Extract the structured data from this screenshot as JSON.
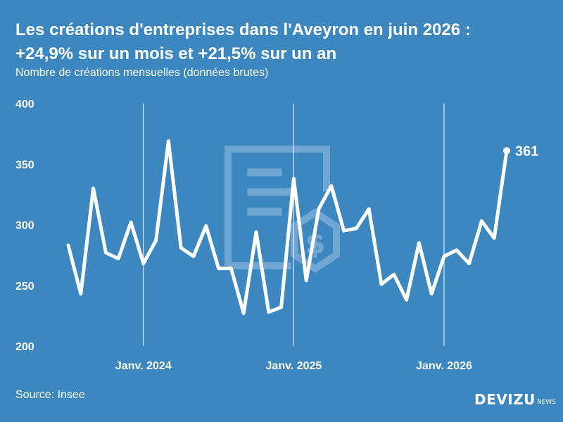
{
  "header": {
    "title_line1": "Les créations d'entreprises dans l'Aveyron en juin 2026 :",
    "title_line2": "+24,9% sur un mois et +21,5% sur un an",
    "subtitle": "Nombre de créations mensuelles (données brutes)"
  },
  "footer": {
    "source": "Source: Insee",
    "brand_main": "DEVIZU",
    "brand_sub": "NEWS"
  },
  "colors": {
    "background": "#3c87c0",
    "line": "#ffffff",
    "watermark": "#6fa6d2"
  },
  "icons": [
    "document-euro-watermark-icon"
  ],
  "chart_data": {
    "type": "line",
    "title": "Les créations d'entreprises dans l'Aveyron en juin 2026 : +24,9% sur un mois et +21,5% sur un an",
    "subtitle": "Nombre de créations mensuelles (données brutes)",
    "xlabel": "",
    "ylabel": "",
    "ylim": [
      200,
      400
    ],
    "yticks": [
      200,
      250,
      300,
      350,
      400
    ],
    "x": [
      "2023-07",
      "2023-08",
      "2023-09",
      "2023-10",
      "2023-11",
      "2023-12",
      "2024-01",
      "2024-02",
      "2024-03",
      "2024-04",
      "2024-05",
      "2024-06",
      "2024-07",
      "2024-08",
      "2024-09",
      "2024-10",
      "2024-11",
      "2024-12",
      "2025-01",
      "2025-02",
      "2025-03",
      "2025-04",
      "2025-05",
      "2025-06",
      "2025-07",
      "2025-08",
      "2025-09",
      "2025-10",
      "2025-11",
      "2025-12",
      "2026-01",
      "2026-02",
      "2026-03",
      "2026-04",
      "2026-05",
      "2026-06"
    ],
    "xticks": [
      {
        "x": "2024-01",
        "label": "Janv. 2024"
      },
      {
        "x": "2025-01",
        "label": "Janv. 2025"
      },
      {
        "x": "2026-01",
        "label": "Janv. 2026"
      }
    ],
    "series": [
      {
        "values": [
          283,
          243,
          330,
          277,
          272,
          302,
          268,
          287,
          369,
          281,
          274,
          299,
          264,
          264,
          227,
          294,
          228,
          232,
          338,
          254,
          313,
          332,
          295,
          297,
          313,
          251,
          259,
          238,
          285,
          243,
          274,
          279,
          268,
          303,
          289,
          361
        ]
      }
    ],
    "last_value_label": "361",
    "vertical_guides": [
      "2024-01",
      "2025-01",
      "2026-01"
    ],
    "grid": false,
    "legend": "none"
  }
}
